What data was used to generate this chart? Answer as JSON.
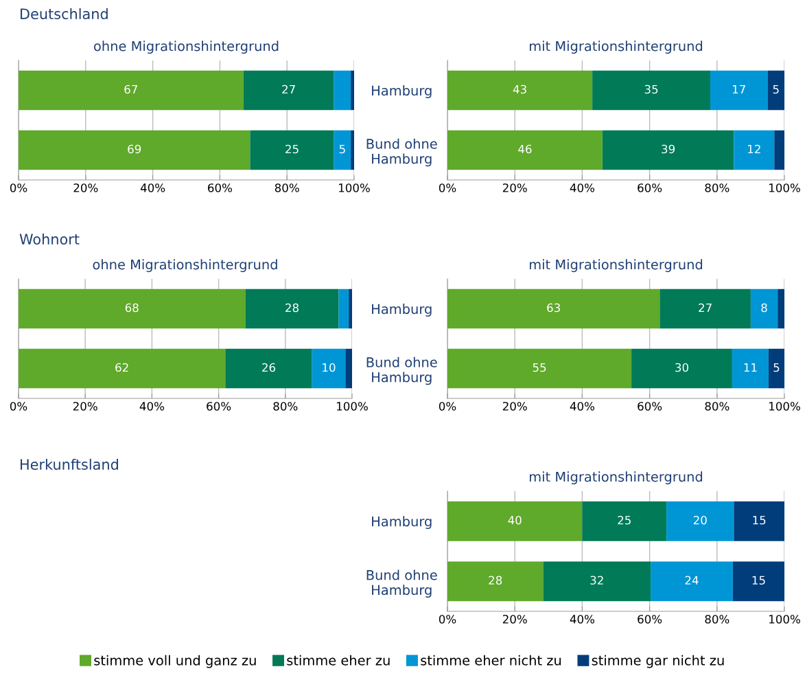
{
  "chart_data": [
    {
      "type": "bar",
      "orientation": "horizontal",
      "stacked": true,
      "title": "ohne Migrationshintergrund",
      "annotations": [
        "Deutschland"
      ],
      "categories": [
        null,
        null
      ],
      "xlim": [
        0,
        100
      ],
      "xticks": [
        {
          "value": 0,
          "label": "0%"
        },
        {
          "value": 20,
          "label": "20%"
        },
        {
          "value": 40,
          "label": "40%"
        },
        {
          "value": 60,
          "label": "60%"
        },
        {
          "value": 80,
          "label": "80%"
        },
        {
          "value": 100,
          "label": "100%"
        }
      ],
      "grid": "x",
      "legend": false,
      "series": [
        {
          "color": "#5fa92b",
          "values": [
            67,
            69
          ],
          "value_labels": [
            "67",
            "69"
          ]
        },
        {
          "color": "#007a57",
          "values": [
            27,
            25
          ],
          "value_labels": [
            "27",
            "25"
          ]
        },
        {
          "color": "#0096d6",
          "values": [
            5,
            5
          ],
          "value_labels": [
            null,
            "5"
          ]
        },
        {
          "color": "#003d7a",
          "values": [
            1,
            1
          ],
          "value_labels": [
            null,
            null
          ]
        }
      ]
    },
    {
      "type": "bar",
      "orientation": "horizontal",
      "stacked": true,
      "title": "mit Migrationshintergrund",
      "categories": [
        "Hamburg",
        "Bund ohne\nHamburg"
      ],
      "xlim": [
        0,
        100
      ],
      "xticks": [
        {
          "value": 0,
          "label": "0%"
        },
        {
          "value": 20,
          "label": "20%"
        },
        {
          "value": 40,
          "label": "40%"
        },
        {
          "value": 60,
          "label": "60%"
        },
        {
          "value": 80,
          "label": "80%"
        },
        {
          "value": 100,
          "label": "100%"
        }
      ],
      "grid": "x",
      "legend": false,
      "series": [
        {
          "color": "#5fa92b",
          "values": [
            43,
            46
          ],
          "value_labels": [
            "43",
            "46"
          ]
        },
        {
          "color": "#007a57",
          "values": [
            35,
            39
          ],
          "value_labels": [
            "35",
            "39"
          ]
        },
        {
          "color": "#0096d6",
          "values": [
            17,
            12
          ],
          "value_labels": [
            "17",
            "12"
          ]
        },
        {
          "color": "#003d7a",
          "values": [
            5,
            3
          ],
          "value_labels": [
            "5",
            null
          ]
        }
      ]
    },
    {
      "type": "bar",
      "orientation": "horizontal",
      "stacked": true,
      "title": "ohne Migrationshintergrund",
      "annotations": [
        "Wohnort"
      ],
      "categories": [
        null,
        null
      ],
      "xlim": [
        0,
        100
      ],
      "xticks": [
        {
          "value": 0,
          "label": "0%"
        },
        {
          "value": 20,
          "label": "20%"
        },
        {
          "value": 40,
          "label": "40%"
        },
        {
          "value": 60,
          "label": "60%"
        },
        {
          "value": 80,
          "label": "80%"
        },
        {
          "value": 100,
          "label": "100%"
        }
      ],
      "grid": "x",
      "legend": false,
      "series": [
        {
          "color": "#5fa92b",
          "values": [
            68,
            62
          ],
          "value_labels": [
            "68",
            "62"
          ]
        },
        {
          "color": "#007a57",
          "values": [
            28,
            26
          ],
          "value_labels": [
            "28",
            "26"
          ]
        },
        {
          "color": "#0096d6",
          "values": [
            3,
            10
          ],
          "value_labels": [
            null,
            "10"
          ]
        },
        {
          "color": "#003d7a",
          "values": [
            1,
            2
          ],
          "value_labels": [
            null,
            null
          ]
        }
      ]
    },
    {
      "type": "bar",
      "orientation": "horizontal",
      "stacked": true,
      "title": "mit Migrationshintergrund",
      "categories": [
        "Hamburg",
        "Bund ohne\nHamburg"
      ],
      "xlim": [
        0,
        100
      ],
      "xticks": [
        {
          "value": 0,
          "label": "0%"
        },
        {
          "value": 20,
          "label": "20%"
        },
        {
          "value": 40,
          "label": "40%"
        },
        {
          "value": 60,
          "label": "60%"
        },
        {
          "value": 80,
          "label": "80%"
        },
        {
          "value": 100,
          "label": "100%"
        }
      ],
      "grid": "x",
      "legend": false,
      "series": [
        {
          "color": "#5fa92b",
          "values": [
            63,
            54.6
          ],
          "value_labels": [
            "63",
            "55"
          ]
        },
        {
          "color": "#007a57",
          "values": [
            27,
            29.9
          ],
          "value_labels": [
            "27",
            "30"
          ]
        },
        {
          "color": "#0096d6",
          "values": [
            8,
            10.8
          ],
          "value_labels": [
            "8",
            "11"
          ]
        },
        {
          "color": "#003d7a",
          "values": [
            2,
            4.7
          ],
          "value_labels": [
            null,
            "5"
          ]
        }
      ]
    },
    {
      "type": "bar",
      "orientation": "horizontal",
      "stacked": true,
      "title": "mit Migrationshintergrund",
      "annotations": [
        "Herkunftsland"
      ],
      "categories": [
        "Hamburg",
        "Bund ohne\nHamburg"
      ],
      "xlim": [
        0,
        100
      ],
      "xticks": [
        {
          "value": 0,
          "label": "0%"
        },
        {
          "value": 20,
          "label": "20%"
        },
        {
          "value": 40,
          "label": "40%"
        },
        {
          "value": 60,
          "label": "60%"
        },
        {
          "value": 80,
          "label": "80%"
        },
        {
          "value": 100,
          "label": "100%"
        }
      ],
      "grid": "x",
      "legend": "bottom",
      "series": [
        {
          "name": "stimme voll und ganz zu",
          "color": "#5fa92b",
          "values": [
            40,
            28.4
          ],
          "value_labels": [
            "40",
            "28"
          ]
        },
        {
          "name": "stimme eher zu",
          "color": "#007a57",
          "values": [
            25,
            31.9
          ],
          "value_labels": [
            "25",
            "32"
          ]
        },
        {
          "name": "stimme eher nicht zu",
          "color": "#0096d6",
          "values": [
            20,
            24.4
          ],
          "value_labels": [
            "20",
            "24"
          ]
        },
        {
          "name": "stimme gar nicht zu",
          "color": "#003d7a",
          "values": [
            15,
            15.3
          ],
          "value_labels": [
            "15",
            "15"
          ]
        }
      ]
    }
  ]
}
